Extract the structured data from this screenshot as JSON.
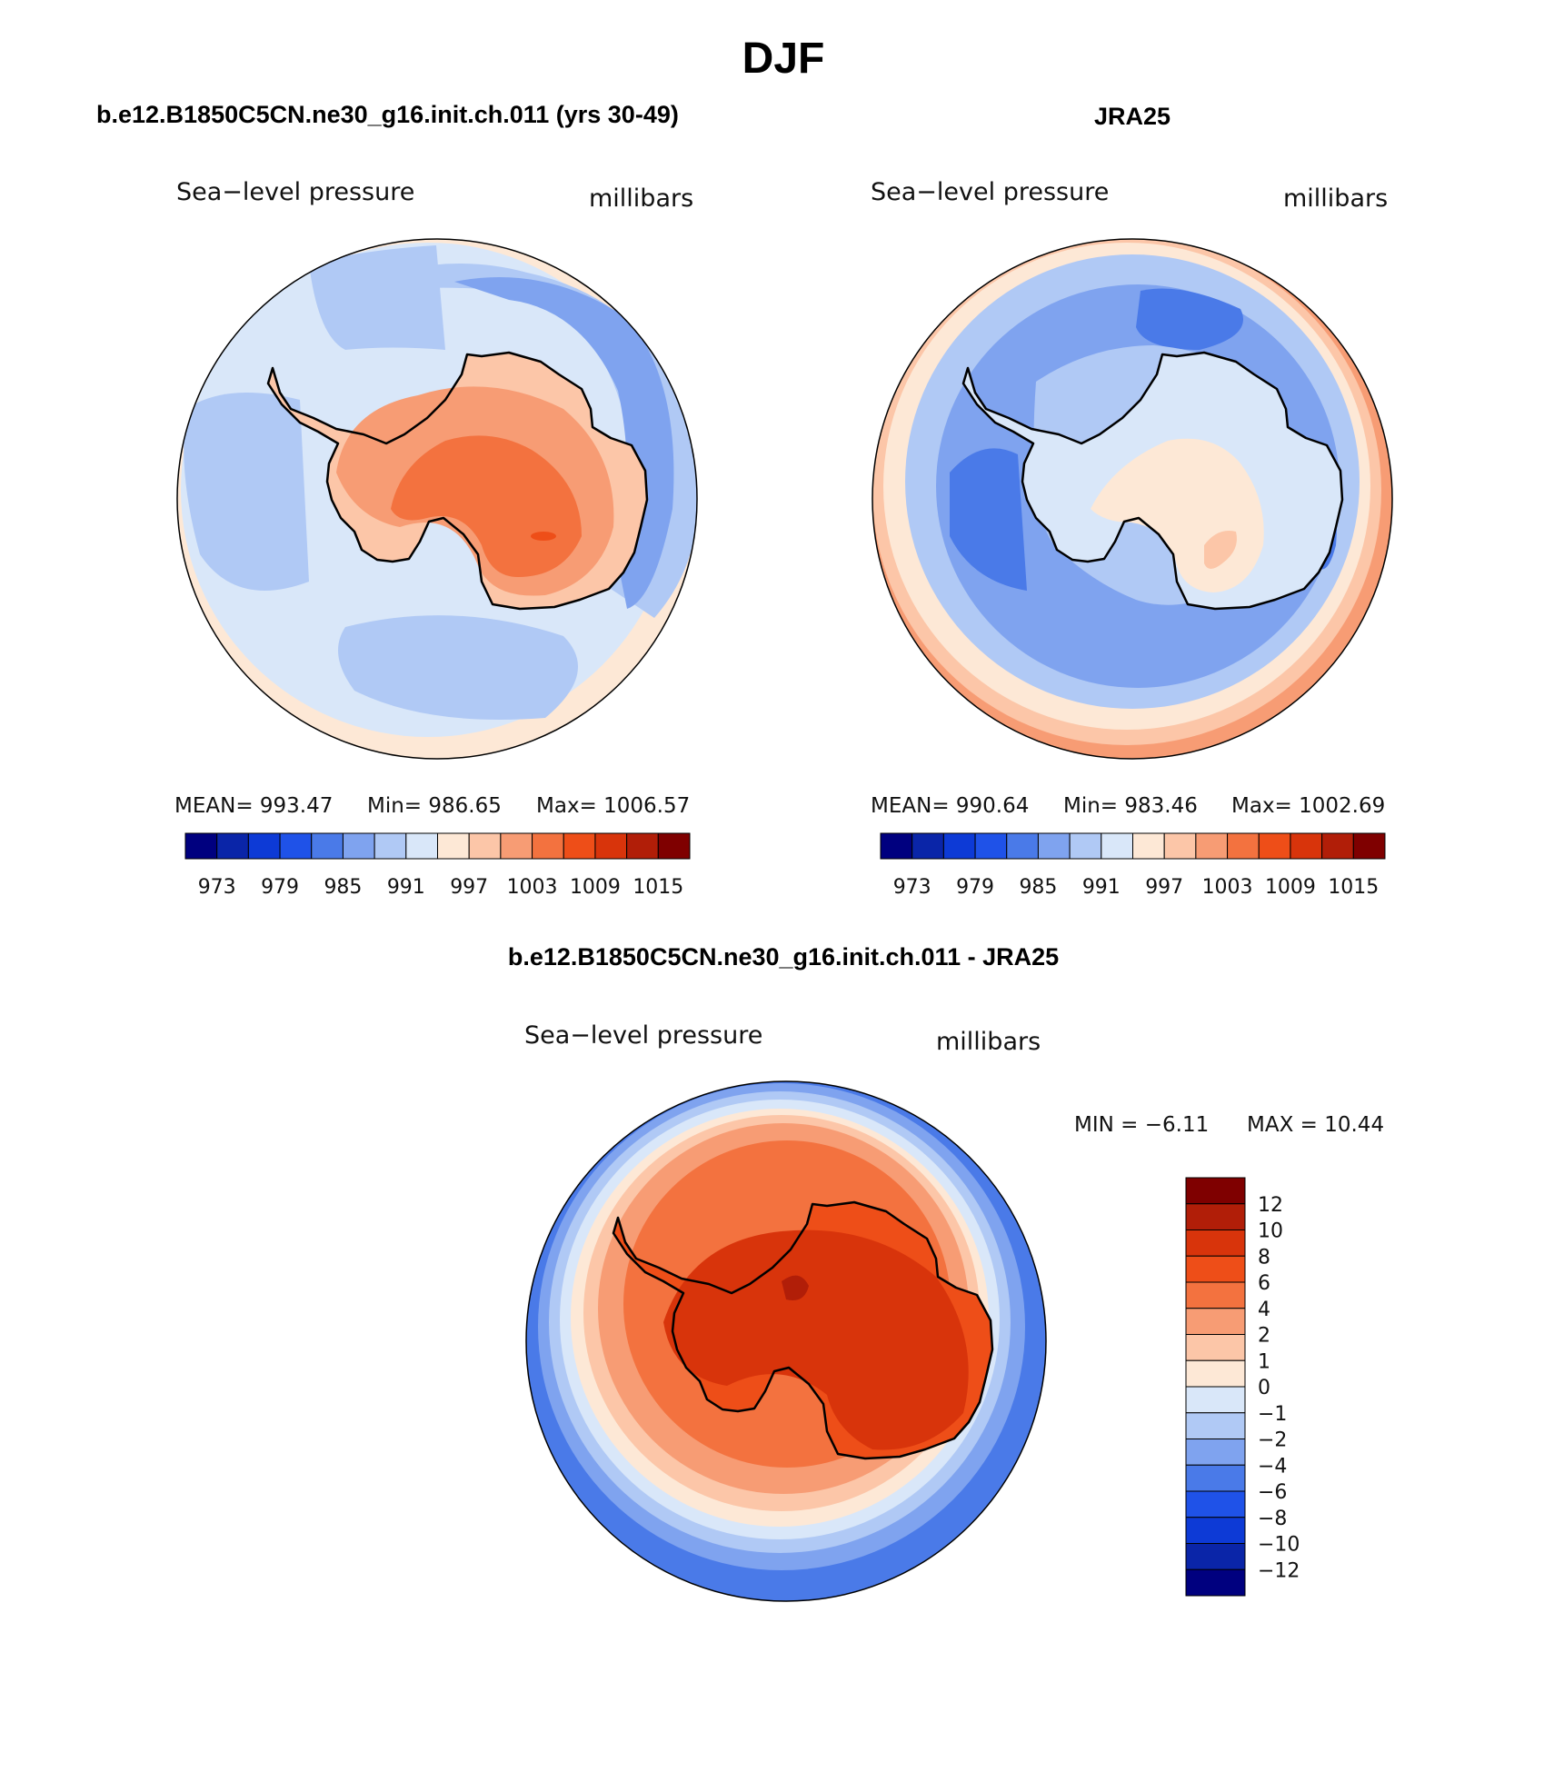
{
  "main_title": "DJF",
  "panels": [
    {
      "title": "b.e12.B1850C5CN.ne30_g16.init.ch.011 (yrs 30-49)",
      "field": "Sea−level pressure",
      "units": "millibars",
      "stats": {
        "mean": "MEAN=  993.47",
        "min": "Min=  986.65",
        "max": "Max=  1006.57"
      },
      "colorbar_labels": [
        "973",
        "979",
        "985",
        "991",
        "997",
        "1003",
        "1009",
        "1015"
      ]
    },
    {
      "title": "JRA25",
      "field": "Sea−level pressure",
      "units": "millibars",
      "stats": {
        "mean": "MEAN=  990.64",
        "min": "Min=  983.46",
        "max": "Max=  1002.69"
      },
      "colorbar_labels": [
        "973",
        "979",
        "985",
        "991",
        "997",
        "1003",
        "1009",
        "1015"
      ]
    },
    {
      "title": "b.e12.B1850C5CN.ne30_g16.init.ch.011 - JRA25",
      "field": "Sea−level pressure",
      "units": "millibars",
      "stats": {
        "min": "MIN =    −6.11",
        "max": "MAX =    10.44"
      },
      "colorbar_labels": [
        "12",
        "10",
        "8",
        "6",
        "4",
        "2",
        "1",
        "0",
        "−1",
        "−2",
        "−4",
        "−6",
        "−8",
        "−10",
        "−12"
      ]
    }
  ],
  "palettes": {
    "abs": [
      "#00007f",
      "#0a25a8",
      "#0d3ad6",
      "#1f52e8",
      "#4a7ae8",
      "#7fa3ef",
      "#b0c9f5",
      "#d9e7f9",
      "#fde8d6",
      "#fcc6a8",
      "#f79c74",
      "#f3723f",
      "#ee4e18",
      "#d8340b",
      "#b11e08",
      "#7f0000"
    ],
    "diff": [
      "#7f0000",
      "#b11e08",
      "#d8340b",
      "#ee4e18",
      "#f3723f",
      "#f79c74",
      "#fcc6a8",
      "#fde8d6",
      "#d9e7f9",
      "#b0c9f5",
      "#7fa3ef",
      "#4a7ae8",
      "#1f52e8",
      "#0d3ad6",
      "#0a25a8",
      "#00007f"
    ]
  },
  "map_colors": {
    "model": {
      "ocean": "#d9e7f9",
      "mid": "#b0c9f5",
      "deep": "#7fa3ef",
      "outer": "#fde8d6",
      "outer2": "#fcc6a8",
      "land1": "#fcc6a8",
      "land2": "#f79c74",
      "land3": "#f3723f",
      "land4": "#ee4e18"
    },
    "obs": {
      "ocean": "#b0c9f5",
      "mid": "#7fa3ef",
      "deep": "#4a7ae8",
      "outer": "#fde8d6",
      "outer2": "#fcc6a8",
      "outer3": "#f79c74",
      "land1": "#d9e7f9",
      "land2": "#fde8d6",
      "land3": "#fcc6a8"
    },
    "diff": {
      "rim": "#4a7ae8",
      "ring1": "#7fa3ef",
      "ring2": "#b0c9f5",
      "ring3": "#d9e7f9",
      "ring4": "#fde8d6",
      "ring5": "#fcc6a8",
      "ring6": "#f79c74",
      "ring7": "#f3723f",
      "land1": "#ee4e18",
      "land2": "#d8340b",
      "land3": "#b11e08"
    }
  }
}
